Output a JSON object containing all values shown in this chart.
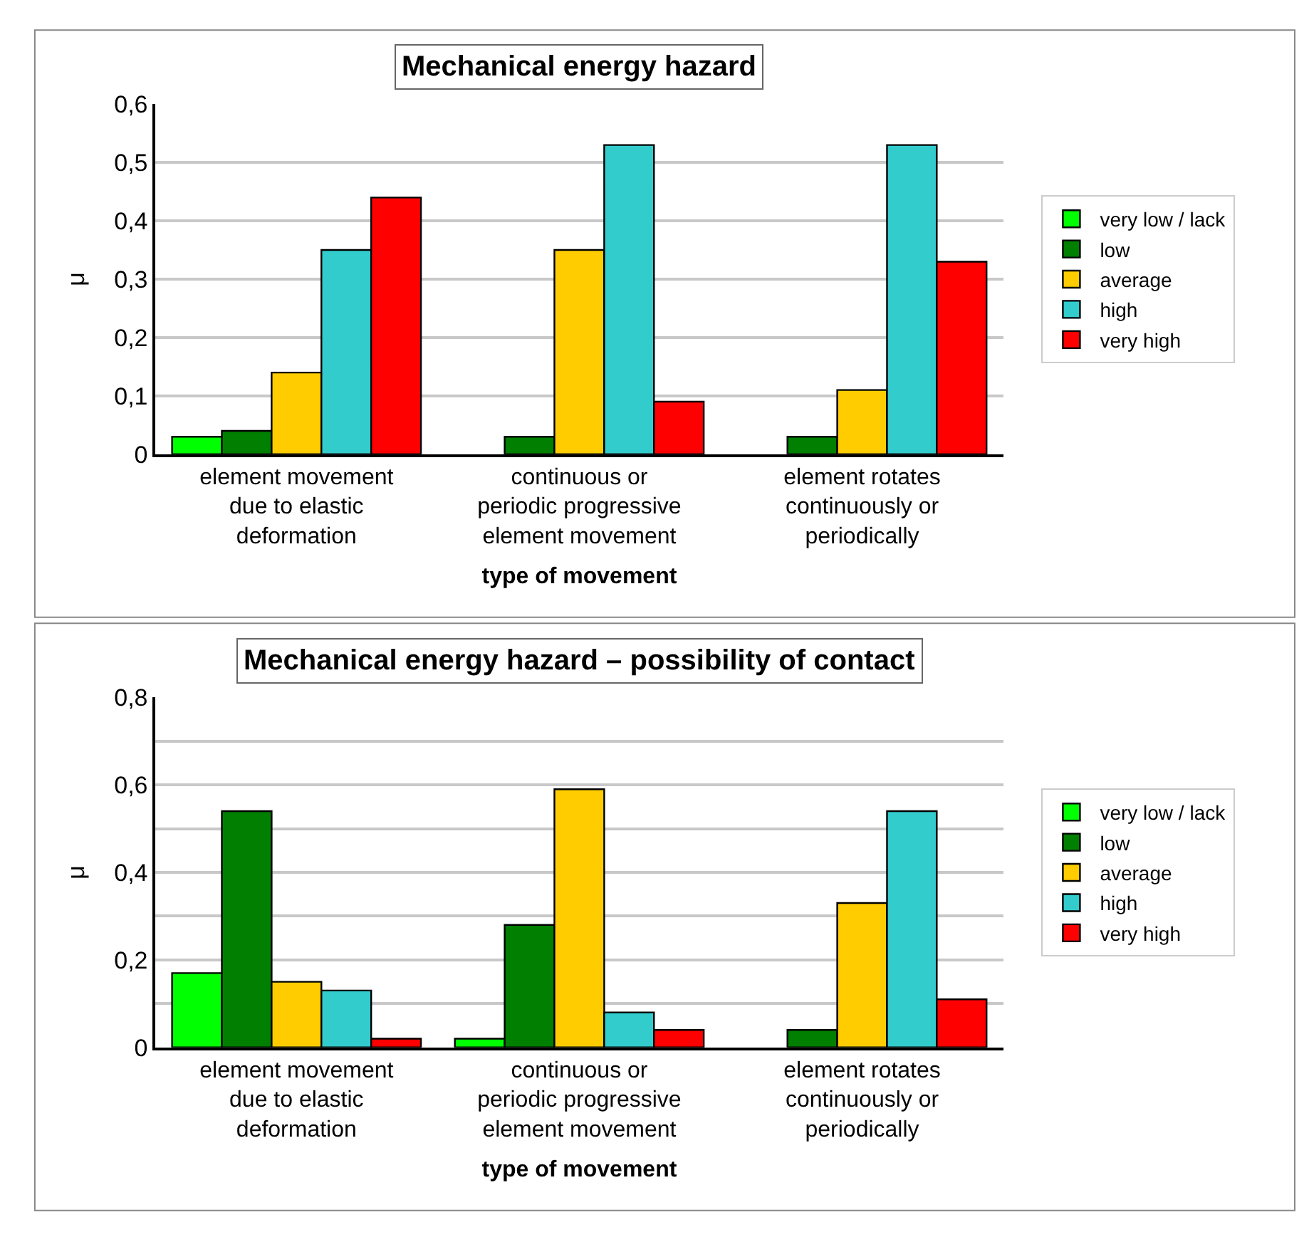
{
  "chart_data": [
    {
      "type": "bar",
      "title": "Mechanical energy hazard",
      "xlabel": "type of movement",
      "ylabel": "μ",
      "categories": [
        "element movement\ndue to elastic\ndeformation",
        "continuous or\nperiodic progressive\nelement movement",
        "element rotates\ncontinuously or\nperiodically"
      ],
      "series": [
        {
          "name": "very low / lack",
          "color": "#00ff00",
          "values": [
            0.03,
            null,
            null
          ]
        },
        {
          "name": "low",
          "color": "#007f00",
          "values": [
            0.04,
            0.03,
            0.03
          ]
        },
        {
          "name": "average",
          "color": "#ffcc00",
          "values": [
            0.14,
            0.35,
            0.11
          ]
        },
        {
          "name": "high",
          "color": "#33cccc",
          "values": [
            0.35,
            0.53,
            0.53
          ]
        },
        {
          "name": "very high",
          "color": "#ff0000",
          "values": [
            0.44,
            0.09,
            0.33
          ]
        }
      ],
      "ylim": [
        0,
        0.6
      ],
      "yticks": [
        0,
        {
          "value": 0.1,
          "label": "0,1"
        },
        {
          "value": 0.2,
          "label": "0,2"
        },
        {
          "value": 0.3,
          "label": "0,3"
        },
        {
          "value": 0.4,
          "label": "0,4"
        },
        {
          "value": 0.5,
          "label": "0,5"
        },
        {
          "value": 0.6,
          "label": "0,6"
        }
      ],
      "grid": "y",
      "legend": "right"
    },
    {
      "type": "bar",
      "title": "Mechanical energy hazard – possibility of contact",
      "xlabel": "type of movement",
      "ylabel": "μ",
      "categories": [
        "element movement\ndue to elastic\ndeformation",
        "continuous or\nperiodic progressive\nelement movement",
        "element rotates\ncontinuously or\nperiodically"
      ],
      "series": [
        {
          "name": "very low / lack",
          "color": "#00ff00",
          "values": [
            0.17,
            0.02,
            null
          ]
        },
        {
          "name": "low",
          "color": "#007f00",
          "values": [
            0.54,
            0.28,
            0.04
          ]
        },
        {
          "name": "average",
          "color": "#ffcc00",
          "values": [
            0.15,
            0.59,
            0.33
          ]
        },
        {
          "name": "high",
          "color": "#33cccc",
          "values": [
            0.13,
            0.08,
            0.54
          ]
        },
        {
          "name": "very high",
          "color": "#ff0000",
          "values": [
            0.02,
            0.04,
            0.11
          ]
        }
      ],
      "ylim": [
        0,
        0.8
      ],
      "yticks": [
        0,
        {
          "value": 0.1,
          "label": null
        },
        {
          "value": 0.2,
          "label": "0,2"
        },
        {
          "value": 0.3,
          "label": null
        },
        {
          "value": 0.4,
          "label": "0,4"
        },
        {
          "value": 0.5,
          "label": null
        },
        {
          "value": 0.6,
          "label": "0,6"
        },
        {
          "value": 0.7,
          "label": null
        },
        {
          "value": 0.8,
          "label": "0,8"
        }
      ],
      "grid": "y",
      "legend": "right"
    }
  ]
}
